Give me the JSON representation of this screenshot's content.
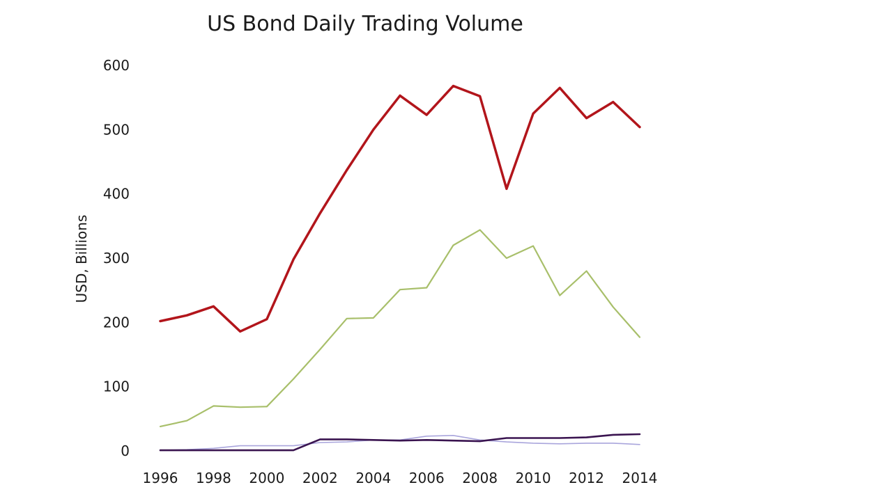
{
  "chart_data": {
    "type": "line",
    "title": "US Bond Daily Trading Volume",
    "xlabel": "",
    "ylabel": "USD, Billions",
    "x": [
      1996,
      1997,
      1998,
      1999,
      2000,
      2001,
      2002,
      2003,
      2004,
      2005,
      2006,
      2007,
      2008,
      2009,
      2010,
      2011,
      2012,
      2013,
      2014
    ],
    "x_tick_labels": [
      "1996",
      "1998",
      "2000",
      "2002",
      "2004",
      "2006",
      "2008",
      "2010",
      "2012",
      "2014"
    ],
    "y_tick_labels": [
      "0",
      "100",
      "200",
      "300",
      "400",
      "500",
      "600"
    ],
    "xlim": [
      1996,
      2014
    ],
    "ylim": [
      0,
      600
    ],
    "grid": false,
    "legend": "none",
    "series": [
      {
        "color": "#b2151b",
        "values": [
          202,
          211,
          225,
          186,
          205,
          298,
          370,
          437,
          500,
          553,
          523,
          568,
          552,
          408,
          525,
          565,
          518,
          543,
          504
        ]
      },
      {
        "color": "#a8bf6a",
        "values": [
          38,
          47,
          70,
          68,
          69,
          112,
          158,
          206,
          207,
          251,
          254,
          320,
          344,
          300,
          319,
          242,
          280,
          224,
          177
        ]
      },
      {
        "color": "#a9a5dc",
        "values": [
          1,
          2,
          4,
          8,
          8,
          8,
          13,
          14,
          17,
          17,
          23,
          24,
          17,
          14,
          12,
          11,
          12,
          12,
          10
        ]
      },
      {
        "color": "#3a1450",
        "values": [
          1,
          1,
          1,
          1,
          1,
          1,
          18,
          18,
          17,
          16,
          17,
          16,
          15,
          20,
          20,
          20,
          21,
          25,
          26
        ]
      }
    ]
  }
}
